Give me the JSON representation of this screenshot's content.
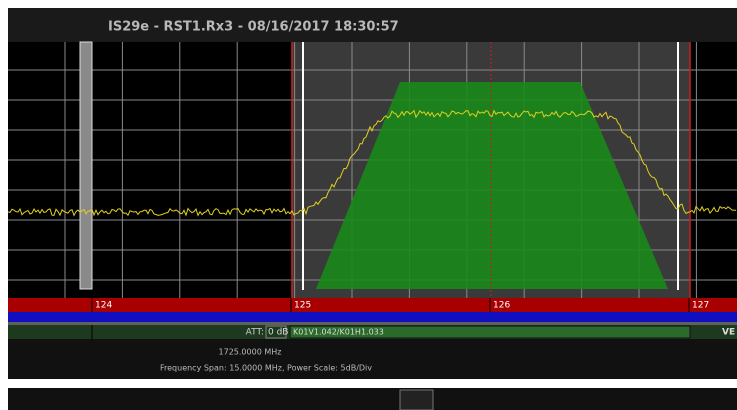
{
  "header": {
    "title": "IS29e - RST1.Rx3 - 08/16/2017 18:30:57"
  },
  "channels": [
    "124",
    "125",
    "126",
    "127"
  ],
  "status": {
    "att_label": "ATT:",
    "att_value": "0 dB",
    "carrier": "K01V1.042/K01H1.033",
    "right": "VE"
  },
  "footer": {
    "center_frequency": "1725.0000 MHz",
    "span": "Frequency Span: 15.0000 MHz, Power Scale: 5dB/Div"
  }
}
